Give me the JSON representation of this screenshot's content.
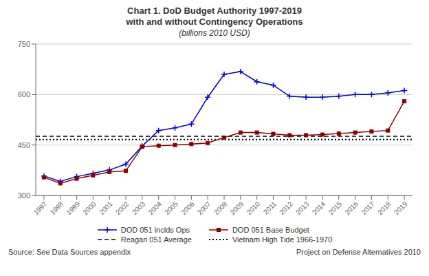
{
  "chart_data": {
    "type": "line",
    "title": "Chart 1. DoD Budget Authority 1997-2019",
    "subtitle": "with and without Contingency Operations",
    "annotations": [
      "(billions 2010 USD)",
      "Source: See Data Sources appendix",
      "Project on Defense Alternatives 2010"
    ],
    "x": [
      1997,
      1998,
      1999,
      2000,
      2001,
      2002,
      2003,
      2004,
      2005,
      2006,
      2007,
      2008,
      2009,
      2010,
      2011,
      2012,
      2013,
      2014,
      2015,
      2016,
      2017,
      2018,
      2019
    ],
    "xlim": [
      1996.5,
      2019.5
    ],
    "xticks": [
      1997,
      1998,
      1999,
      2000,
      2001,
      2002,
      2003,
      2004,
      2005,
      2006,
      2007,
      2008,
      2009,
      2010,
      2011,
      2012,
      2013,
      2014,
      2015,
      2016,
      2017,
      2018,
      2019
    ],
    "series": [
      {
        "name": "DOD 051 inclds Ops",
        "color": "#0000CC",
        "marker": "plus",
        "line_style": "solid",
        "values": [
          358,
          342,
          356,
          366,
          376,
          393,
          447,
          493,
          501,
          512,
          592,
          660,
          668,
          638,
          628,
          595,
          592,
          592,
          595,
          600,
          600,
          605,
          612
        ]
      },
      {
        "name": "DOD 051 Base Budget",
        "color": "#8B0000",
        "marker": "square",
        "line_style": "solid",
        "values": [
          354,
          336,
          350,
          360,
          370,
          373,
          445,
          448,
          450,
          453,
          456,
          472,
          487,
          487,
          483,
          479,
          479,
          481,
          484,
          487,
          490,
          493,
          580
        ]
      }
    ],
    "reference_lines": [
      {
        "name": "Reagan 051 Average",
        "value": 476,
        "color": "#000000",
        "line_style": "dashed"
      },
      {
        "name": "Vietnam High Tide 1966-1970",
        "value": 466,
        "color": "#000000",
        "line_style": "dotted"
      }
    ],
    "ylim": [
      300,
      750
    ],
    "yticks": [
      300,
      450,
      600,
      750
    ],
    "grid": true,
    "legend": "bottom"
  }
}
